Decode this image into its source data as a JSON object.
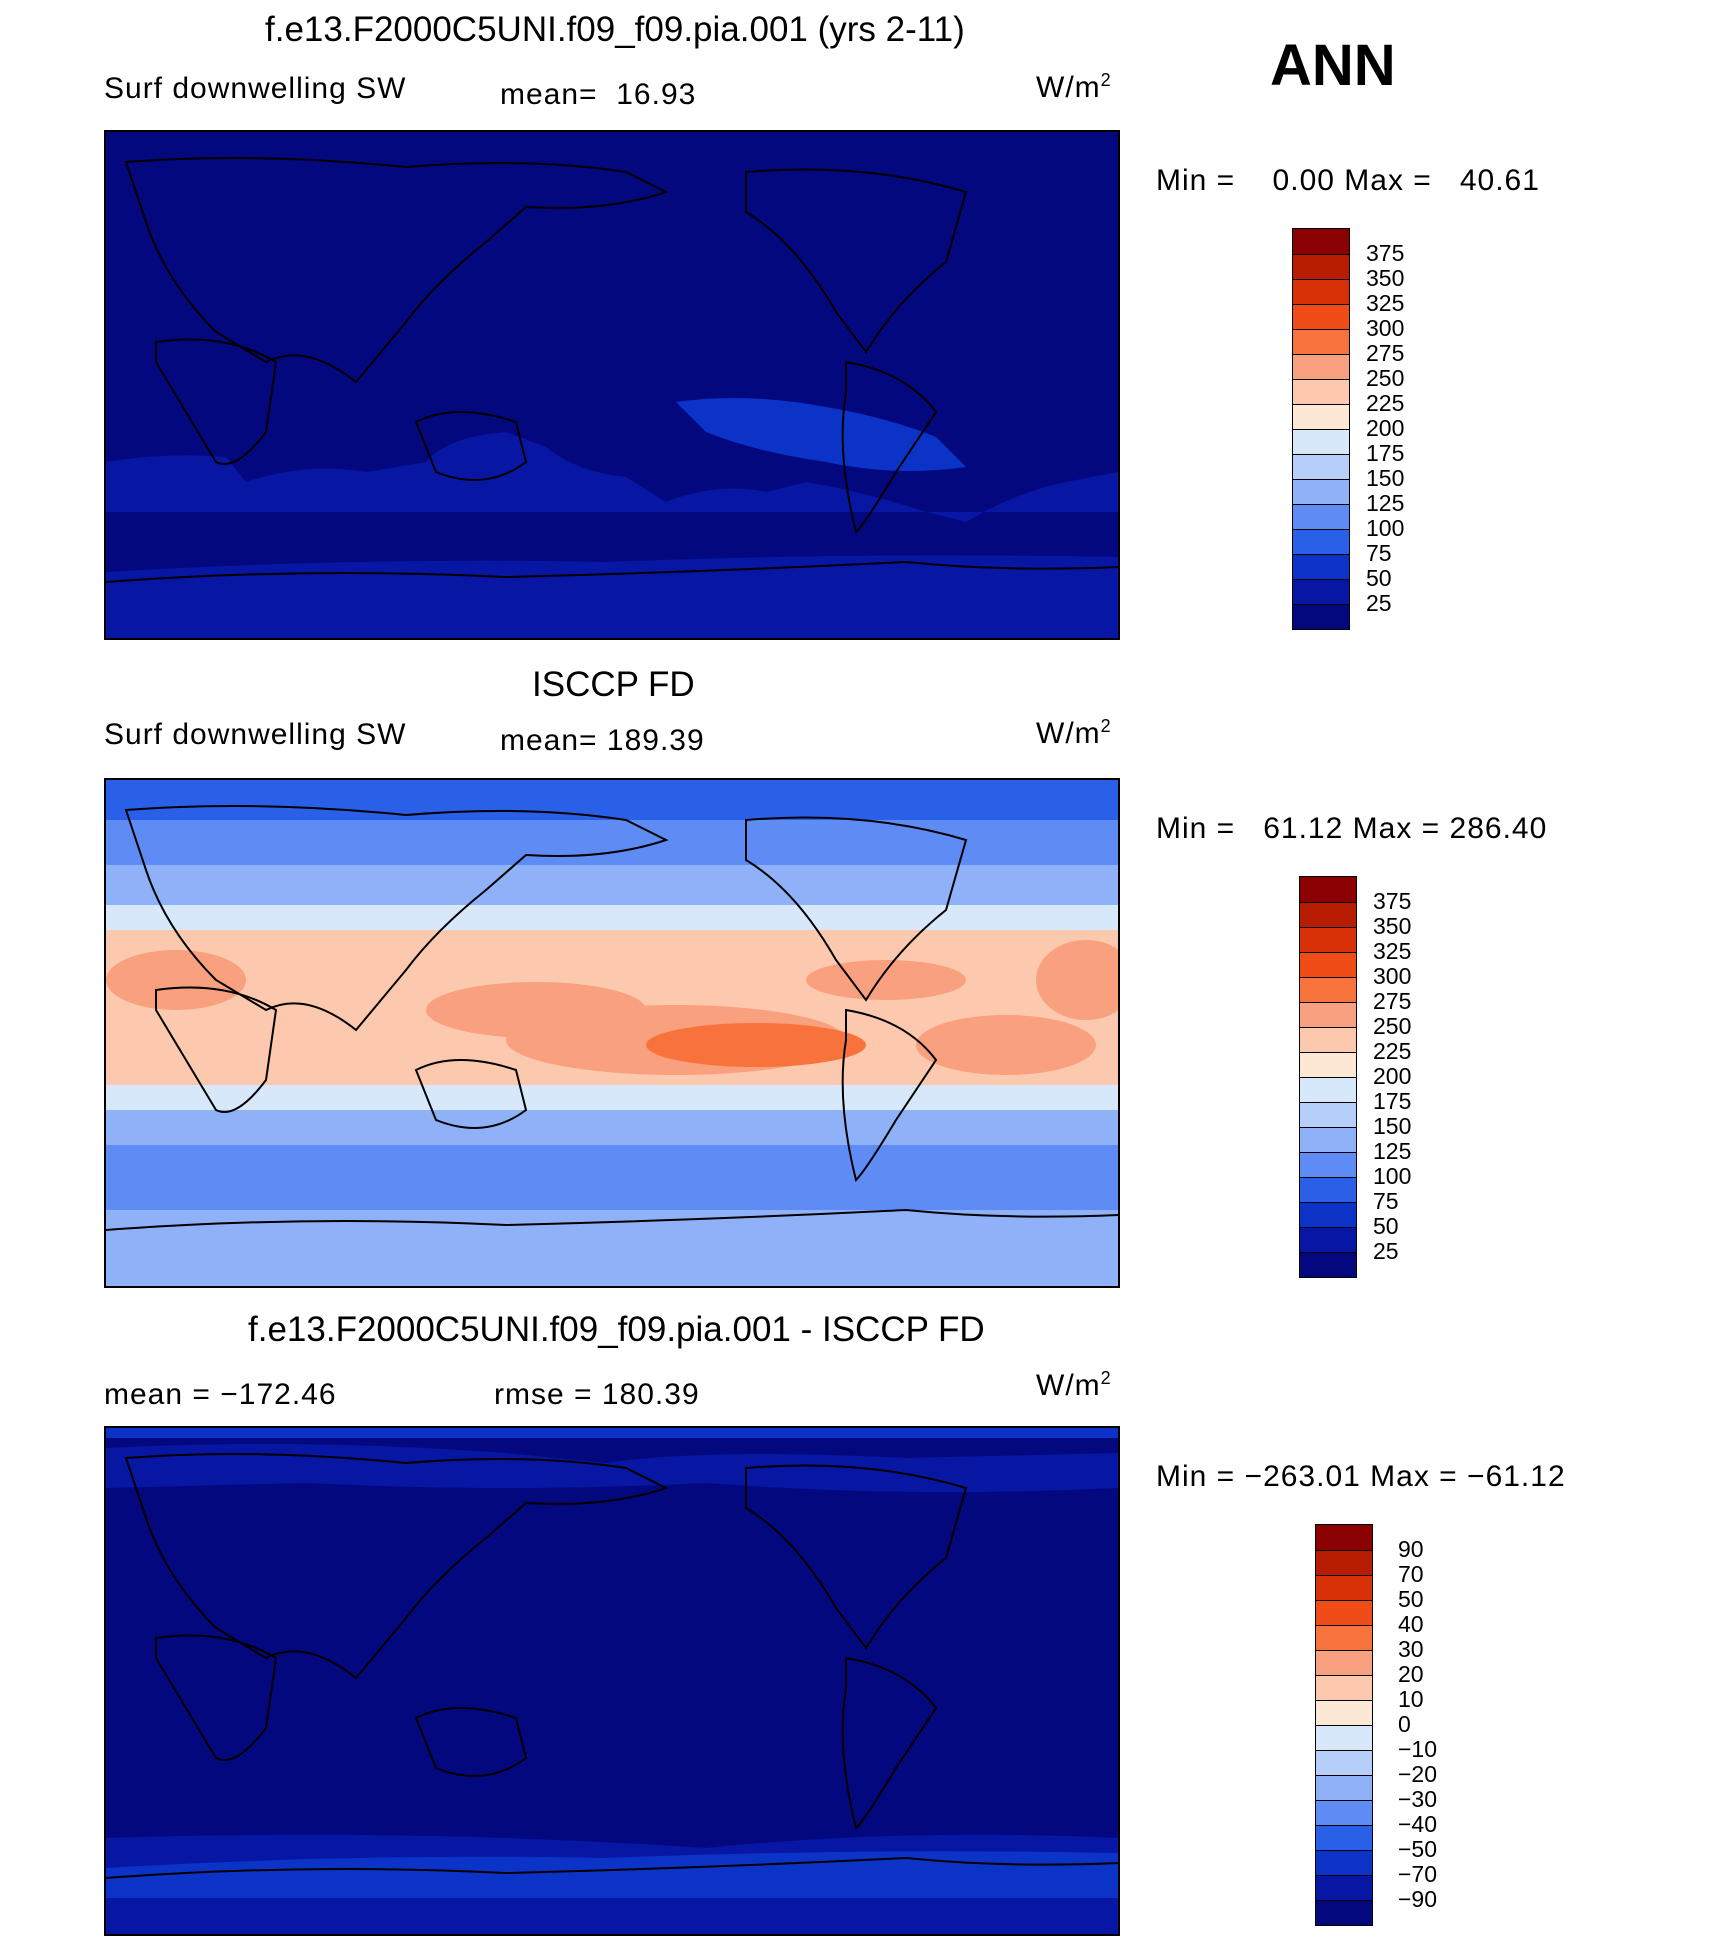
{
  "season": "ANN",
  "units_label": "W/m",
  "units_sup": "2",
  "panel1": {
    "title": "f.e13.F2000C5UNI.f09_f09.pia.001 (yrs 2-11)",
    "variable": "Surf downwelling SW",
    "mean_label": "mean=",
    "mean_value": "16.93",
    "min_label": "Min =",
    "min_value": "0.00",
    "max_label": "Max =",
    "max_value": "40.61"
  },
  "panel2": {
    "title": "ISCCP FD",
    "variable": "Surf downwelling SW",
    "mean_label": "mean=",
    "mean_value": "189.39",
    "min_label": "Min =",
    "min_value": "61.12",
    "max_label": "Max =",
    "max_value": "286.40"
  },
  "panel3": {
    "title": "f.e13.F2000C5UNI.f09_f09.pia.001 - ISCCP FD",
    "mean_label": "mean =",
    "mean_value": "−172.46",
    "rmse_label": "rmse =",
    "rmse_value": "180.39",
    "min_label": "Min =",
    "min_value": "−263.01",
    "max_label": "Max =",
    "max_value": "−61.12"
  },
  "chart_data": [
    {
      "type": "heatmap",
      "title": "f.e13.F2000C5UNI.f09_f09.pia.001 (yrs 2-11)",
      "variable": "Surf downwelling SW",
      "units": "W/m^2",
      "mean": 16.93,
      "min": 0.0,
      "max": 40.61,
      "colorbar_levels": [
        "375",
        "350",
        "325",
        "300",
        "275",
        "250",
        "225",
        "200",
        "175",
        "150",
        "125",
        "100",
        "75",
        "50",
        "25"
      ],
      "colorbar_colors": [
        "#8b0000",
        "#b71c00",
        "#d93106",
        "#f04c17",
        "#f8733c",
        "#f9a07e",
        "#fcc9ae",
        "#fde7d5",
        "#d7e8fa",
        "#b6cffa",
        "#8fb1f8",
        "#5e8cf4",
        "#2a5fe8",
        "#0c33c8",
        "#0717a3",
        "#03087e"
      ]
    },
    {
      "type": "heatmap",
      "title": "ISCCP FD",
      "variable": "Surf downwelling SW",
      "units": "W/m^2",
      "mean": 189.39,
      "min": 61.12,
      "max": 286.4,
      "colorbar_levels": [
        "375",
        "350",
        "325",
        "300",
        "275",
        "250",
        "225",
        "200",
        "175",
        "150",
        "125",
        "100",
        "75",
        "50",
        "25"
      ],
      "colorbar_colors": [
        "#8b0000",
        "#b71c00",
        "#d93106",
        "#f04c17",
        "#f8733c",
        "#f9a07e",
        "#fcc9ae",
        "#fde7d5",
        "#d7e8fa",
        "#b6cffa",
        "#8fb1f8",
        "#5e8cf4",
        "#2a5fe8",
        "#0c33c8",
        "#0717a3",
        "#03087e"
      ]
    },
    {
      "type": "heatmap",
      "title": "f.e13.F2000C5UNI.f09_f09.pia.001 - ISCCP FD",
      "units": "W/m^2",
      "mean": -172.46,
      "rmse": 180.39,
      "min": -263.01,
      "max": -61.12,
      "colorbar_levels": [
        "90",
        "70",
        "50",
        "40",
        "30",
        "20",
        "10",
        "0",
        "−10",
        "−20",
        "−30",
        "−40",
        "−50",
        "−70",
        "−90"
      ],
      "colorbar_colors": [
        "#8b0000",
        "#b71c00",
        "#d93106",
        "#f04c17",
        "#f8733c",
        "#f9a07e",
        "#fcc9ae",
        "#fde7d5",
        "#d7e8fa",
        "#b6cffa",
        "#8fb1f8",
        "#5e8cf4",
        "#2a5fe8",
        "#0c33c8",
        "#0717a3",
        "#03087e"
      ]
    }
  ]
}
